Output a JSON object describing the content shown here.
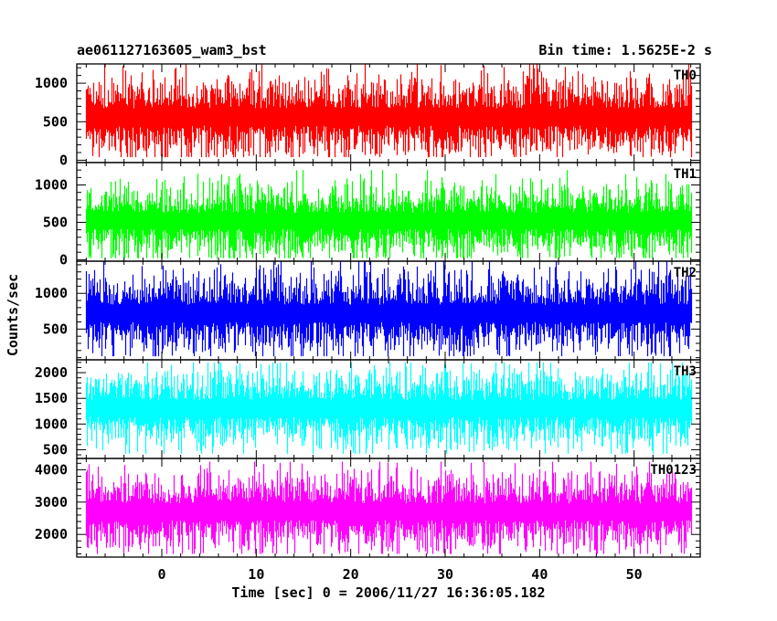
{
  "chart_data": {
    "type": "area",
    "title_left": "ae061127163605_wam3_bst",
    "title_right": "Bin time: 1.5625E-2 s",
    "xlabel": "Time [sec] 0 = 2006/11/27 16:36:05.182",
    "ylabel": "Counts/sec",
    "xlim": [
      -9,
      57
    ],
    "data_x_range": [
      -8,
      56
    ],
    "x_ticks": [
      0,
      10,
      20,
      30,
      40,
      50
    ],
    "x_tick_labels": [
      "0",
      "10",
      "20",
      "30",
      "40",
      "50"
    ],
    "grid": false,
    "panels": [
      {
        "name": "TH0",
        "color": "#ff0000",
        "ylim": [
          -30,
          1250
        ],
        "y_ticks": [
          0,
          500,
          1000
        ],
        "y_tick_labels": [
          "0",
          "500",
          "1000"
        ],
        "mean": 560,
        "band": [
          40,
          1250
        ]
      },
      {
        "name": "TH1",
        "color": "#00ff00",
        "ylim": [
          -20,
          1300
        ],
        "y_ticks": [
          0,
          500,
          1000
        ],
        "y_tick_labels": [
          "0",
          "500",
          "1000"
        ],
        "mean": 520,
        "band": [
          20,
          1200
        ]
      },
      {
        "name": "TH2",
        "color": "#0000ff",
        "ylim": [
          70,
          1450
        ],
        "y_ticks": [
          500,
          1000
        ],
        "y_tick_labels": [
          "500",
          "1000"
        ],
        "mean": 720,
        "band": [
          120,
          1450
        ]
      },
      {
        "name": "TH3",
        "color": "#00ffff",
        "ylim": [
          330,
          2250
        ],
        "y_ticks": [
          500,
          1000,
          1500,
          2000
        ],
        "y_tick_labels": [
          "500",
          "1000",
          "1500",
          "2000"
        ],
        "mean": 1300,
        "band": [
          420,
          2200
        ]
      },
      {
        "name": "TH0123",
        "color": "#ff00ff",
        "ylim": [
          1300,
          4350
        ],
        "y_ticks": [
          2000,
          3000,
          4000
        ],
        "y_tick_labels": [
          "2000",
          "3000",
          "4000"
        ],
        "mean": 2700,
        "band": [
          1400,
          4250
        ]
      }
    ]
  }
}
